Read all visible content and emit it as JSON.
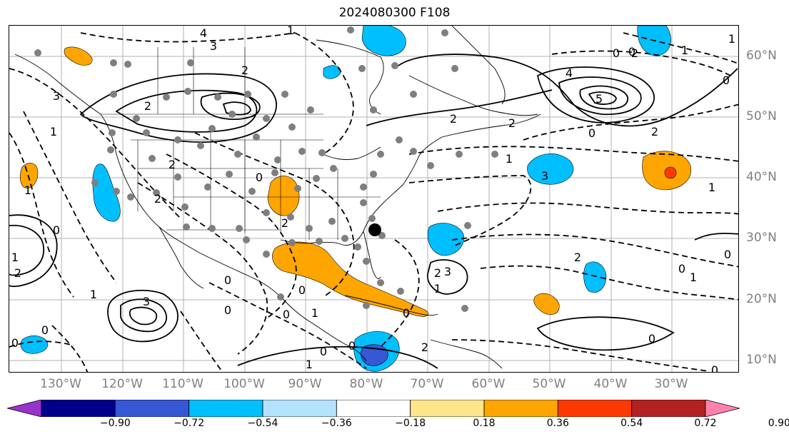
{
  "title": "2024080300 F108",
  "map": {
    "lon_labels": [
      "130°W",
      "120°W",
      "110°W",
      "100°W",
      "90°W",
      "80°W",
      "70°W",
      "60°W",
      "50°W",
      "40°W",
      "30°W"
    ],
    "lat_labels": [
      "60°N",
      "50°N",
      "40°N",
      "30°N",
      "20°N",
      "10°N"
    ],
    "contour_labels": [
      "4",
      "3",
      "2",
      "1",
      "3",
      "2",
      "2",
      "2",
      "0",
      "1",
      "2",
      "1",
      "0",
      "2",
      "3",
      "4",
      "5",
      "0",
      "2",
      "2",
      "1",
      "3",
      "1",
      "0",
      "1",
      "0",
      "2",
      "0",
      "0",
      "2",
      "3",
      "1",
      "0",
      "0",
      "2",
      "1",
      "0",
      "0",
      "1",
      "0",
      "0",
      "0",
      "0",
      "1",
      "0",
      "1",
      "0",
      "2",
      "2",
      "0",
      "1",
      "0",
      "1"
    ]
  },
  "colorbar": {
    "ticks": [
      "−0.90",
      "−0.72",
      "−0.54",
      "−0.36",
      "−0.18",
      "0.18",
      "0.36",
      "0.54",
      "0.72",
      "0.90"
    ],
    "colors": [
      "#9a32cd",
      "#00008b",
      "#3758d4",
      "#00bfff",
      "#b2e2fc",
      "#ffffff",
      "#fde68a",
      "#ffa500",
      "#ff3a00",
      "#b22222",
      "#ff82ab"
    ]
  }
}
